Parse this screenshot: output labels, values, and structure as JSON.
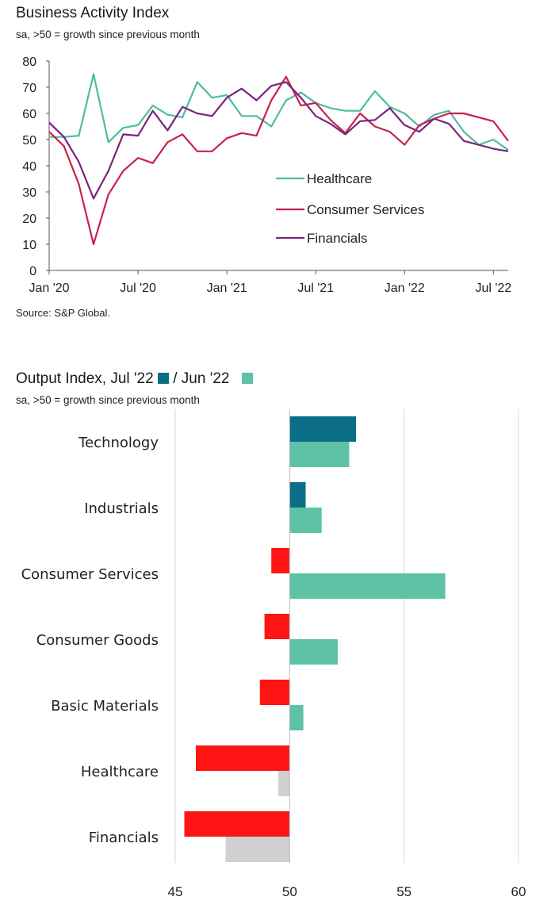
{
  "colors": {
    "healthcare": "#4ebc9f",
    "consumer_services": "#c8204e",
    "financials": "#7a237f",
    "jul22": "#0b6e88",
    "jun22": "#5dc2a6",
    "negative": "#ff1414",
    "negative_prev": "#d0d0d0",
    "axis": "#555555",
    "grid": "#d9d9d9"
  },
  "chart1": {
    "title": "Business Activity Index",
    "subtitle": "sa, >50 = growth since previous month",
    "source": "Source: S&P Global."
  },
  "chart2": {
    "title_prefix": "Output Index, Jul '22",
    "title_mid": "/ Jun '22",
    "subtitle": "sa, >50 = growth since previous month"
  },
  "chart_data": [
    {
      "type": "line",
      "title": "Business Activity Index",
      "subtitle": "sa, >50 = growth since previous month",
      "xlabel": "",
      "ylabel": "",
      "ylim": [
        0,
        80
      ],
      "yticks": [
        0,
        10,
        20,
        30,
        40,
        50,
        60,
        70,
        80
      ],
      "x_tick_labels": [
        {
          "label": "Jan '20",
          "index": 0
        },
        {
          "label": "Jul '20",
          "index": 6
        },
        {
          "label": "Jan '21",
          "index": 12
        },
        {
          "label": "Jul '21",
          "index": 18
        },
        {
          "label": "Jan '22",
          "index": 24
        },
        {
          "label": "Jul '22",
          "index": 30
        }
      ],
      "legend_position": "center-right",
      "series": [
        {
          "name": "Healthcare",
          "color_key": "healthcare",
          "values": [
            51,
            51,
            51.5,
            75,
            49,
            54.5,
            55.5,
            63,
            59.5,
            58.5,
            72,
            66,
            67,
            59,
            59,
            55,
            65,
            68,
            64,
            62,
            61,
            61,
            68.5,
            62.5,
            60,
            55,
            59.5,
            61,
            53,
            48,
            50,
            46
          ]
        },
        {
          "name": "Consumer Services",
          "color_key": "consumer_services",
          "values": [
            53,
            47.5,
            33,
            10,
            29,
            38,
            43,
            41,
            49,
            52,
            45.5,
            45.5,
            50.5,
            52.5,
            51.5,
            65,
            74,
            63,
            64,
            57.5,
            52.5,
            60,
            55,
            53,
            48,
            55.5,
            58,
            60,
            60,
            58.5,
            57,
            49.5
          ]
        },
        {
          "name": "Financials",
          "color_key": "financials",
          "values": [
            56.5,
            51,
            41.5,
            27.5,
            38,
            52,
            51.5,
            61,
            53.5,
            62.5,
            60,
            59,
            66,
            69.5,
            65,
            70.5,
            72,
            66,
            59,
            56,
            52,
            57,
            57.5,
            62,
            55.5,
            53,
            58,
            56,
            49.5,
            48,
            46.5,
            45.5
          ]
        }
      ]
    },
    {
      "type": "bar",
      "orientation": "horizontal",
      "title": "Output Index, Jul '22 / Jun '22",
      "subtitle": "sa, >50 = growth since previous month",
      "baseline": 50,
      "xlim": [
        45,
        60
      ],
      "xticks": [
        45,
        50,
        55,
        60
      ],
      "categories": [
        "Technology",
        "Industrials",
        "Consumer Services",
        "Consumer Goods",
        "Basic Materials",
        "Healthcare",
        "Financials"
      ],
      "series": [
        {
          "name": "Jul '22",
          "color_key": "jul22",
          "values": [
            52.9,
            50.7,
            49.2,
            48.9,
            48.7,
            45.9,
            45.4
          ]
        },
        {
          "name": "Jun '22",
          "color_key": "jun22",
          "values": [
            52.6,
            51.4,
            56.8,
            52.1,
            50.6,
            49.5,
            47.2
          ]
        }
      ]
    }
  ]
}
